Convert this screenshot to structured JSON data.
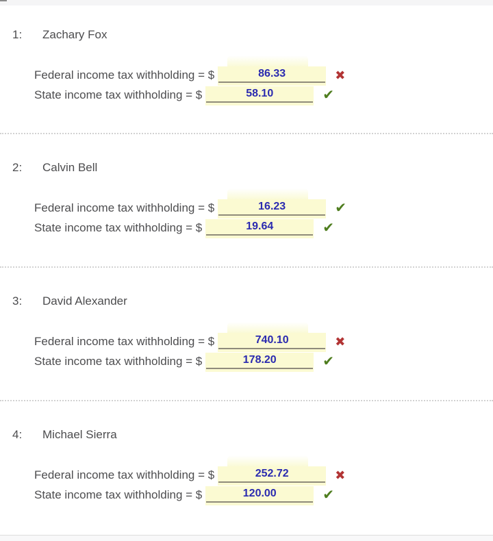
{
  "colors": {
    "answer_box_bg": "#fbfad2",
    "answer_value_text": "#2a2ab0",
    "answer_underline": "#8f8b7b",
    "correct_mark": "#4e7d1e",
    "incorrect_mark": "#b23434",
    "label_text": "#4d4d4f",
    "separator_dots": "#d2d2d2"
  },
  "icons": {
    "correct": "check-icon",
    "incorrect": "x-icon"
  },
  "questions": [
    {
      "number": "1:",
      "name": "Zachary Fox",
      "answers": [
        {
          "label": "Federal income tax withholding = $",
          "value": "86.33",
          "status": "incorrect",
          "mark": "✖"
        },
        {
          "label": "State income tax withholding = $",
          "value": "58.10",
          "status": "correct",
          "mark": "✔"
        }
      ]
    },
    {
      "number": "2:",
      "name": "Calvin Bell",
      "answers": [
        {
          "label": "Federal income tax withholding = $",
          "value": "16.23",
          "status": "correct",
          "mark": "✔"
        },
        {
          "label": "State income tax withholding = $",
          "value": "19.64",
          "status": "correct",
          "mark": "✔"
        }
      ]
    },
    {
      "number": "3:",
      "name": "David Alexander",
      "answers": [
        {
          "label": "Federal income tax withholding = $",
          "value": "740.10",
          "status": "incorrect",
          "mark": "✖"
        },
        {
          "label": "State income tax withholding = $",
          "value": "178.20",
          "status": "correct",
          "mark": "✔"
        }
      ]
    },
    {
      "number": "4:",
      "name": "Michael Sierra",
      "answers": [
        {
          "label": "Federal income tax withholding = $",
          "value": "252.72",
          "status": "incorrect",
          "mark": "✖"
        },
        {
          "label": "State income tax withholding = $",
          "value": "120.00",
          "status": "correct",
          "mark": "✔"
        }
      ]
    }
  ]
}
